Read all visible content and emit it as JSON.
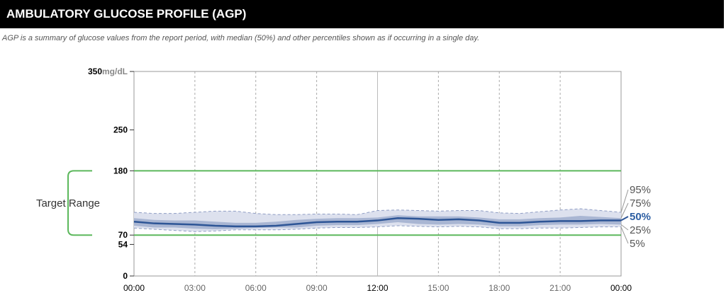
{
  "header": {
    "title": "AMBULATORY GLUCOSE PROFILE (AGP)"
  },
  "subtitle": "AGP is a summary of glucose values from the report period, with median (50%) and other percentiles shown as if occurring in a single day.",
  "colors": {
    "target_line": "#5cb85c",
    "band_outer": "#dde1ee",
    "band_inner": "#a9b6d3",
    "median": "#2d5596",
    "pct_dash": "#8f9dc4"
  },
  "chart_data": {
    "type": "area",
    "ylabel": "mg/dL",
    "ylim": [
      0,
      350
    ],
    "y_ticks": [
      {
        "value": 350,
        "label": "350"
      },
      {
        "value": 250,
        "label": "250"
      },
      {
        "value": 180,
        "label": "180"
      },
      {
        "value": 70,
        "label": "70"
      },
      {
        "value": 54,
        "label": "54"
      },
      {
        "value": 0,
        "label": "0"
      }
    ],
    "y_unit": "mg/dL",
    "xlim": [
      0,
      24
    ],
    "x_ticks": [
      {
        "hour": 0,
        "label": "00:00",
        "major": true
      },
      {
        "hour": 3,
        "label": "03:00",
        "major": false
      },
      {
        "hour": 6,
        "label": "06:00",
        "major": false
      },
      {
        "hour": 9,
        "label": "09:00",
        "major": false
      },
      {
        "hour": 12,
        "label": "12:00",
        "major": true
      },
      {
        "hour": 15,
        "label": "15:00",
        "major": false
      },
      {
        "hour": 18,
        "label": "18:00",
        "major": false
      },
      {
        "hour": 21,
        "label": "21:00",
        "major": false
      },
      {
        "hour": 24,
        "label": "00:00",
        "major": true
      }
    ],
    "target_range": {
      "label": "Target Range",
      "low": 70,
      "high": 180
    },
    "x": [
      0,
      1,
      2,
      3,
      4,
      5,
      6,
      7,
      8,
      9,
      10,
      11,
      12,
      13,
      14,
      15,
      16,
      17,
      18,
      19,
      20,
      21,
      22,
      23,
      24
    ],
    "series": [
      {
        "name": "95%",
        "values": [
          109,
          107,
          107,
          109,
          111,
          111,
          107,
          105,
          105,
          106,
          106,
          105,
          112,
          113,
          112,
          111,
          112,
          112,
          108,
          107,
          110,
          113,
          115,
          112,
          109
        ]
      },
      {
        "name": "75%",
        "values": [
          99,
          96,
          95,
          95,
          93,
          91,
          91,
          93,
          96,
          98,
          99,
          99,
          100,
          104,
          102,
          102,
          102,
          100,
          97,
          97,
          99,
          100,
          103,
          101,
          99
        ]
      },
      {
        "name": "50%",
        "values": [
          93,
          90,
          89,
          88,
          86,
          85,
          85,
          86,
          89,
          92,
          93,
          93,
          95,
          99,
          98,
          96,
          97,
          95,
          91,
          91,
          93,
          94,
          94,
          95,
          95
        ]
      },
      {
        "name": "25%",
        "values": [
          86,
          83,
          83,
          81,
          80,
          81,
          82,
          83,
          83,
          86,
          87,
          87,
          89,
          92,
          89,
          88,
          89,
          88,
          85,
          85,
          87,
          88,
          88,
          89,
          88
        ]
      },
      {
        "name": "5%",
        "values": [
          82,
          80,
          78,
          76,
          77,
          79,
          79,
          79,
          80,
          82,
          83,
          83,
          84,
          86,
          85,
          84,
          85,
          84,
          81,
          81,
          82,
          82,
          83,
          84,
          84
        ]
      }
    ],
    "legend": [
      "95%",
      "75%",
      "50%",
      "25%",
      "5%"
    ],
    "grid": true
  }
}
